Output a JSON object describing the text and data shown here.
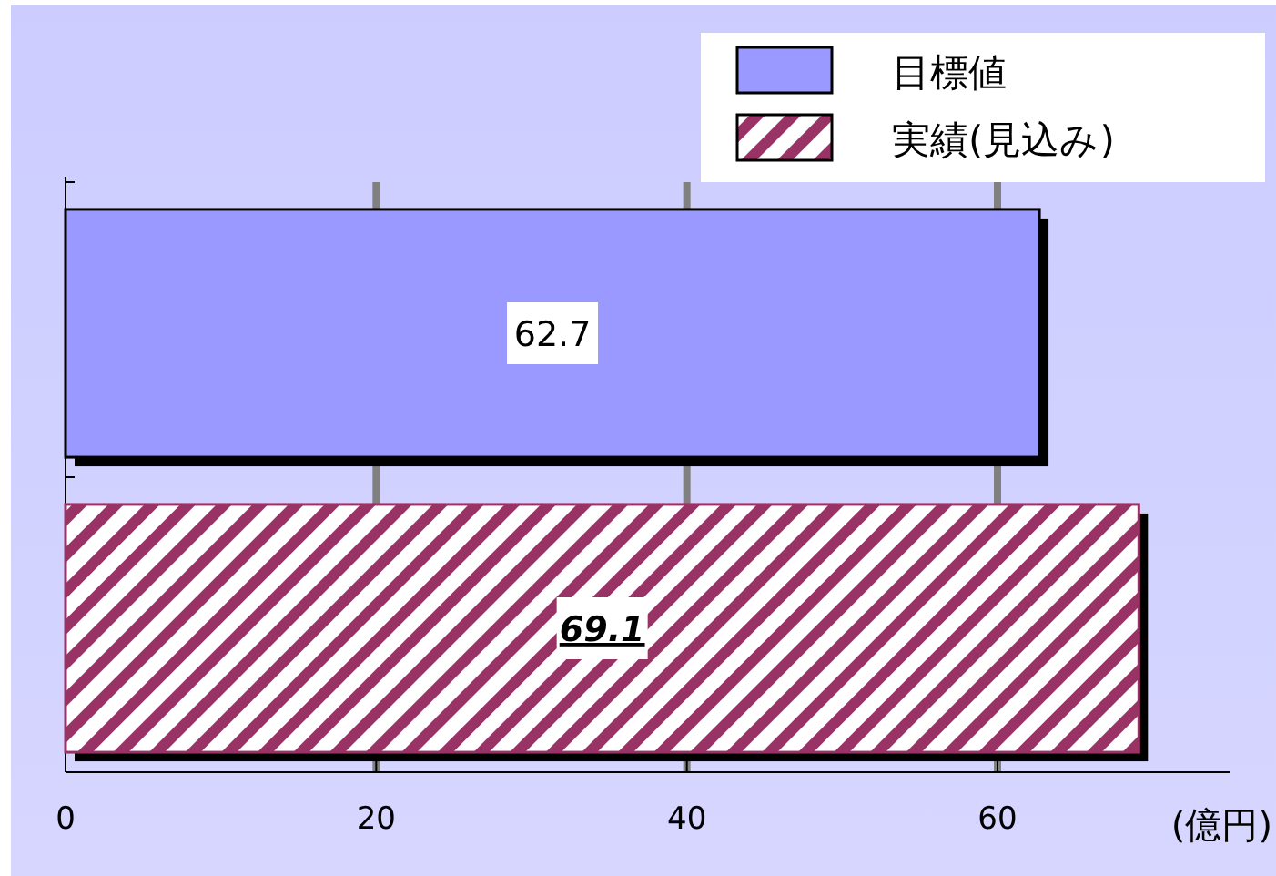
{
  "chart_data": {
    "type": "bar",
    "orientation": "horizontal",
    "xlabel": "(億円)",
    "categories": [
      null
    ],
    "series": [
      {
        "name": "目標値",
        "color": "#9999ff",
        "values": [
          62.7
        ]
      },
      {
        "name": "実績(見込み)",
        "color": "#993366",
        "values": [
          69.1
        ]
      }
    ],
    "xlim": [
      0,
      75
    ],
    "xticks": [
      0,
      20,
      40,
      60
    ],
    "grid": "x",
    "legend": "top right",
    "data_labels": true
  }
}
